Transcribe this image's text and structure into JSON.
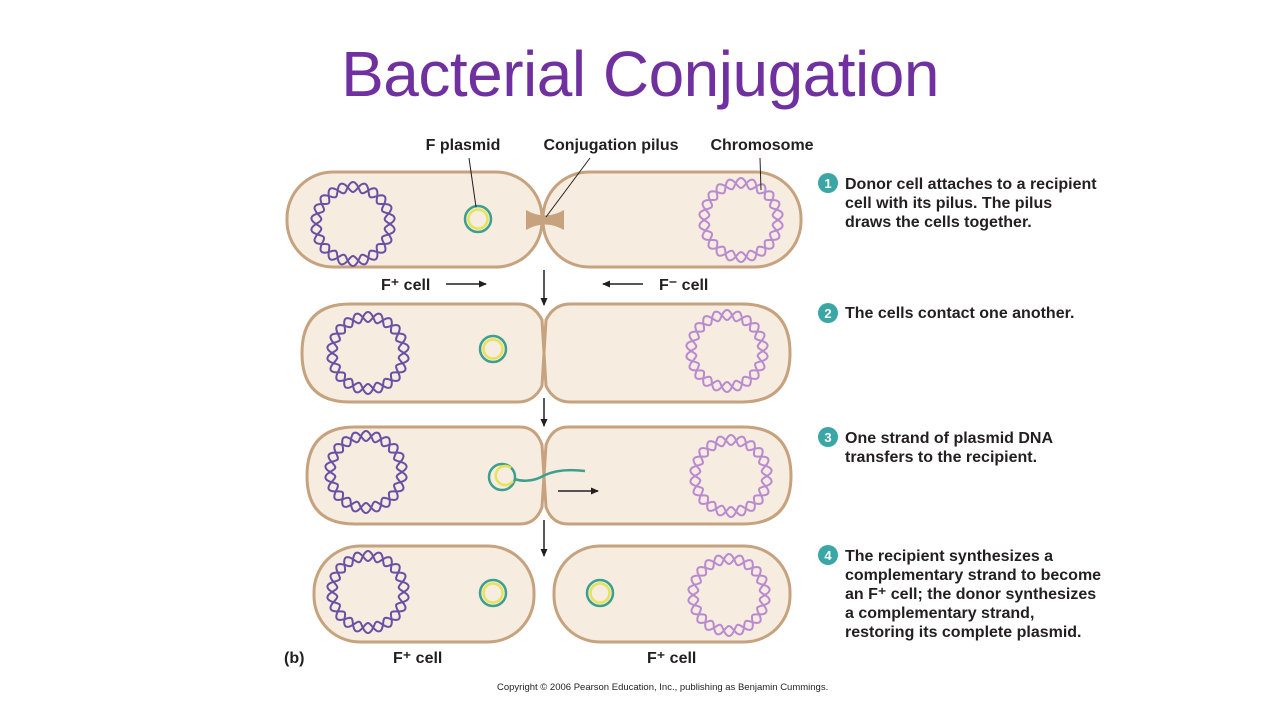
{
  "title": "Bacterial Conjugation",
  "labels": {
    "f_plasmid": "F plasmid",
    "pilus": "Conjugation pilus",
    "chromosome": "Chromosome",
    "f_plus_cell": "F⁺ cell",
    "f_minus_cell": "F⁻ cell",
    "panel": "(b)",
    "bottom_left_cell": "F⁺ cell",
    "bottom_right_cell": "F⁺ cell"
  },
  "steps": [
    {
      "number": "1",
      "lines": [
        "Donor cell attaches to a recipient",
        "cell with its pilus. The pilus",
        "draws the cells together."
      ]
    },
    {
      "number": "2",
      "lines": [
        "The cells contact one another."
      ]
    },
    {
      "number": "3",
      "lines": [
        "One strand of plasmid DNA",
        "transfers to the recipient."
      ]
    },
    {
      "number": "4",
      "lines": [
        "The recipient synthesizes a",
        "complementary strand to become",
        "an F⁺ cell; the donor synthesizes",
        "a complementary strand,",
        "restoring its complete plasmid."
      ]
    }
  ],
  "copyright": "Copyright © 2006 Pearson Education, Inc., publishing as Benjamin Cummings.",
  "colors": {
    "title": "#7030a0",
    "cell_fill": "#f6ecdf",
    "cell_outline": "#c6a27f",
    "donor_chromosome": "#6a4fa5",
    "recipient_chromosome": "#b98ad0",
    "plasmid_outer": "#3f9f8e",
    "plasmid_inner": "#e6e35a",
    "step_badge": "#3aa6a6"
  }
}
